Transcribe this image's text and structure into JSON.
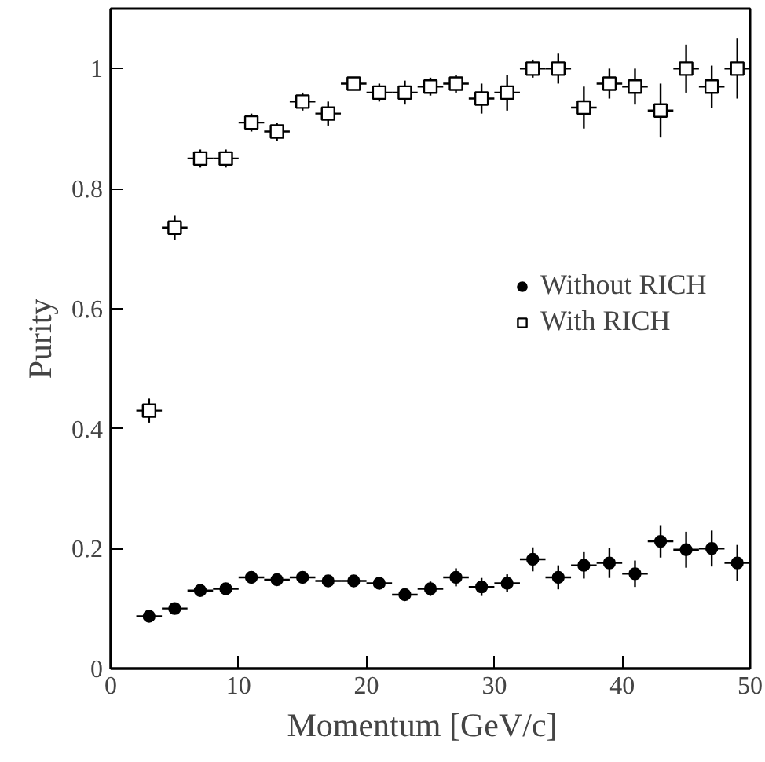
{
  "chart_data": {
    "type": "scatter",
    "xlabel": "Momentum   [GeV/c]",
    "ylabel": "Purity",
    "x": [
      3,
      5,
      7,
      9,
      11,
      13,
      15,
      17,
      19,
      21,
      23,
      25,
      27,
      29,
      31,
      33,
      35,
      37,
      39,
      41,
      43,
      45,
      47,
      49
    ],
    "xlim": [
      0,
      50
    ],
    "xticks": [
      0,
      10,
      20,
      30,
      40,
      50
    ],
    "ylim": [
      0,
      1.1
    ],
    "yticks": [
      0,
      0.2,
      0.4,
      0.6,
      0.8,
      1
    ],
    "grid": false,
    "legend": "right",
    "series": [
      {
        "name": "Without RICH",
        "color": "#000000",
        "marker": "circle",
        "values": [
          0.087,
          0.1,
          0.13,
          0.133,
          0.152,
          0.148,
          0.152,
          0.146,
          0.146,
          0.142,
          0.123,
          0.133,
          0.152,
          0.136,
          0.142,
          0.182,
          0.152,
          0.172,
          0.176,
          0.158,
          0.212,
          0.198,
          0.2,
          0.176
        ],
        "errors": [
          0.005,
          0.005,
          0.008,
          0.008,
          0.008,
          0.008,
          0.008,
          0.01,
          0.01,
          0.01,
          0.01,
          0.012,
          0.015,
          0.015,
          0.015,
          0.02,
          0.02,
          0.022,
          0.025,
          0.022,
          0.027,
          0.03,
          0.03,
          0.03
        ],
        "xerrors": [
          1,
          1,
          1,
          1,
          1,
          1,
          1,
          1,
          1,
          1,
          1,
          1,
          1,
          1,
          1,
          1,
          1,
          1,
          1,
          1,
          1,
          1,
          1,
          1
        ]
      },
      {
        "name": "With RICH",
        "color": "#000000",
        "marker": "square",
        "values": [
          0.43,
          0.735,
          0.85,
          0.85,
          0.91,
          0.895,
          0.945,
          0.925,
          0.975,
          0.96,
          0.96,
          0.97,
          0.975,
          0.95,
          0.96,
          1.0,
          1.0,
          0.935,
          0.975,
          0.97,
          0.93,
          1.0,
          0.97,
          1.0
        ],
        "errors": [
          0.02,
          0.02,
          0.015,
          0.015,
          0.015,
          0.015,
          0.015,
          0.02,
          0.01,
          0.015,
          0.02,
          0.015,
          0.015,
          0.025,
          0.03,
          0.015,
          0.025,
          0.035,
          0.025,
          0.03,
          0.045,
          0.04,
          0.035,
          0.05
        ],
        "xerrors": [
          1,
          1,
          1,
          1,
          1,
          1,
          1,
          1,
          1,
          1,
          1,
          1,
          1,
          1,
          1,
          1,
          1,
          1,
          1,
          1,
          1,
          1,
          1,
          1
        ]
      }
    ]
  }
}
